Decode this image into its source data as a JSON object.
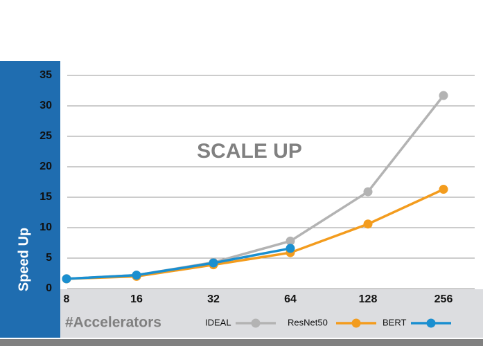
{
  "chart_data": {
    "type": "line",
    "annotation": "SCALE UP",
    "xlabel": "#Accelerators",
    "ylabel": "Speed Up",
    "categories": [
      "8",
      "16",
      "32",
      "64",
      "128",
      "256"
    ],
    "series": [
      {
        "name": "IDEAL",
        "color": "#b3b3b3",
        "values": [
          1.6,
          2.2,
          4.3,
          7.8,
          15.9,
          31.7
        ]
      },
      {
        "name": "ResNet50",
        "color": "#f39c1e",
        "values": [
          1.6,
          2.0,
          3.9,
          5.9,
          10.6,
          16.3
        ]
      },
      {
        "name": "BERT",
        "color": "#1a8fd0",
        "values": [
          1.6,
          2.2,
          4.2,
          6.6,
          null,
          null
        ]
      }
    ],
    "ylim": [
      0,
      35
    ],
    "yticks": [
      0,
      5,
      10,
      15,
      20,
      25,
      30,
      35
    ],
    "grid": true
  }
}
